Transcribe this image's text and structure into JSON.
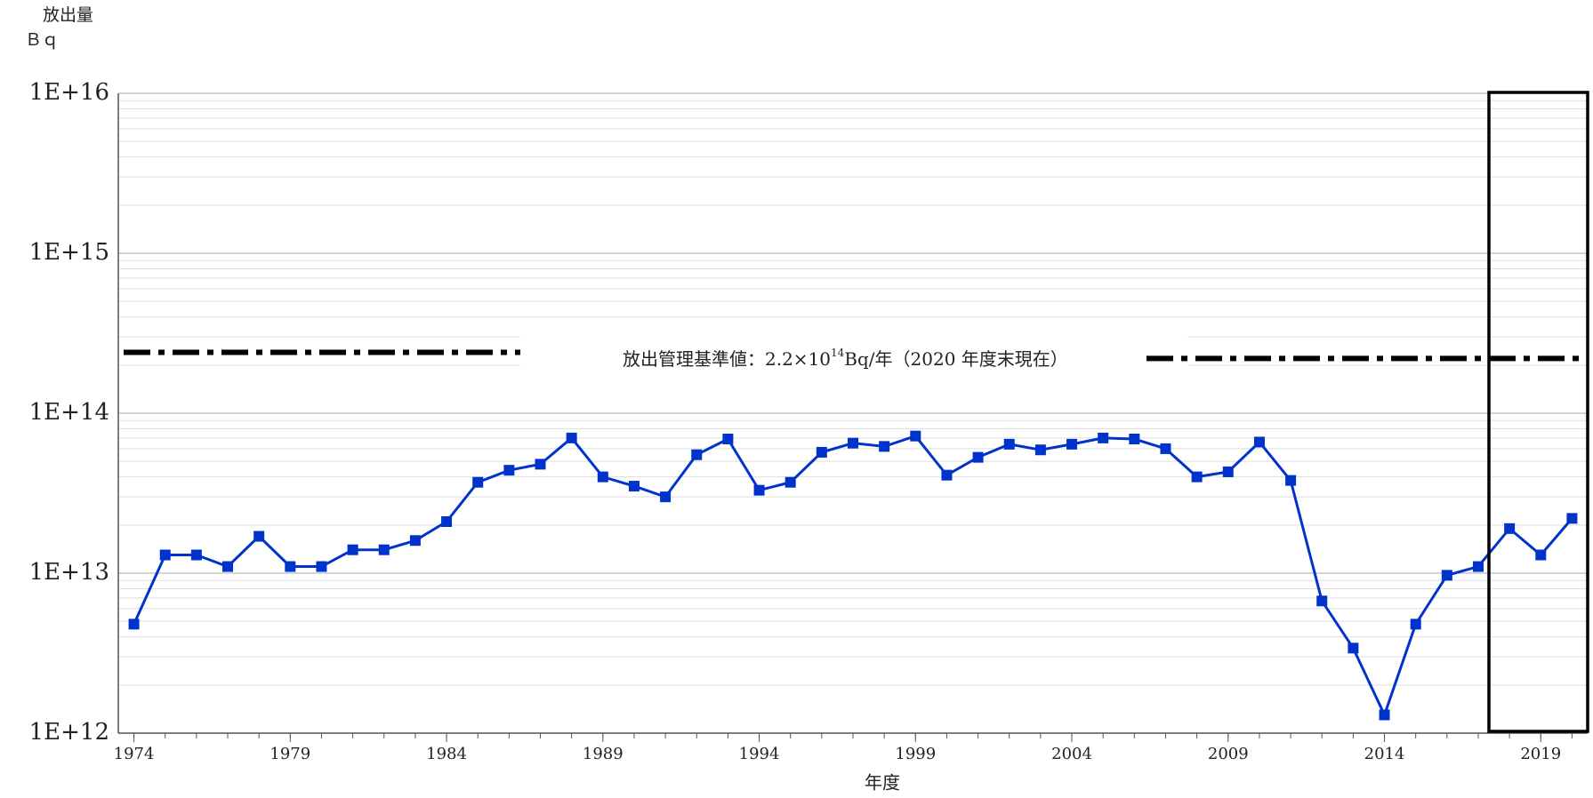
{
  "chart_data": {
    "type": "line",
    "y_label": [
      "放出量",
      "Ｂｑ"
    ],
    "x_label": "年度",
    "annotation": [
      "放出管理基準値：2.2×10",
      "14",
      "Bq/年（2020 年度末現在）"
    ],
    "x": [
      1974,
      1975,
      1976,
      1977,
      1978,
      1979,
      1980,
      1981,
      1982,
      1983,
      1984,
      1985,
      1986,
      1987,
      1988,
      1989,
      1990,
      1991,
      1992,
      1993,
      1994,
      1995,
      1996,
      1997,
      1998,
      1999,
      2000,
      2001,
      2002,
      2003,
      2004,
      2005,
      2006,
      2007,
      2008,
      2009,
      2010,
      2011,
      2012,
      2013,
      2014,
      2015,
      2016,
      2017,
      2018,
      2019,
      2020
    ],
    "series": [
      {
        "color": "#0033cc",
        "values": [
          4800000000000.0,
          13000000000000.0,
          13000000000000.0,
          11000000000000.0,
          17000000000000.0,
          11000000000000.0,
          11000000000000.0,
          14000000000000.0,
          14000000000000.0,
          16000000000000.0,
          21000000000000.0,
          37000000000000.0,
          44000000000000.0,
          48000000000000.0,
          70000000000000.0,
          40000000000000.0,
          35000000000000.0,
          30000000000000.0,
          55000000000000.0,
          69000000000000.0,
          33000000000000.0,
          37000000000000.0,
          57000000000000.0,
          65000000000000.0,
          62000000000000.0,
          72000000000000.0,
          41000000000000.0,
          53000000000000.0,
          64000000000000.0,
          59000000000000.0,
          64000000000000.0,
          70000000000000.0,
          69000000000000.0,
          60000000000000.0,
          40000000000000.0,
          43000000000000.0,
          66000000000000.0,
          38000000000000.0,
          6700000000000.0,
          3400000000000.0,
          1300000000000.0,
          4800000000000.0,
          9700000000000.0,
          11000000000000.0,
          19000000000000.0,
          13000000000000.0,
          22000000000000.0
        ]
      }
    ],
    "reference_lines": [
      {
        "value": 240000000000000.0
      },
      {
        "value": 220000000000000.0
      }
    ],
    "xlim": [
      1973.5,
      2020.5
    ],
    "xticks": [
      1974,
      1979,
      1984,
      1989,
      1994,
      1999,
      2004,
      2009,
      2014,
      2019
    ],
    "ylim": [
      1000000000000.0,
      1e+16
    ],
    "yticks": [
      {
        "value": 1000000000000.0,
        "label": "1E+12"
      },
      {
        "value": 10000000000000.0,
        "label": "1E+13"
      },
      {
        "value": 100000000000000.0,
        "label": "1E+14"
      },
      {
        "value": 1000000000000000.0,
        "label": "1E+15"
      },
      {
        "value": 1e+16,
        "label": "1E+16"
      }
    ],
    "log_scale": true,
    "grid": true
  }
}
